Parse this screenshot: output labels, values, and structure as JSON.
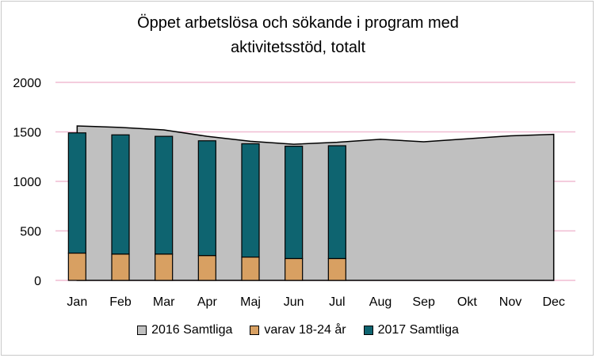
{
  "chart_data": {
    "type": "bar",
    "title_line1": "Öppet arbetslösa och sökande i program med",
    "title_line2": "aktivitetsstöd, totalt",
    "categories": [
      "Jan",
      "Feb",
      "Mar",
      "Apr",
      "Maj",
      "Jun",
      "Jul",
      "Aug",
      "Sep",
      "Okt",
      "Nov",
      "Dec"
    ],
    "y_ticks": [
      "0",
      "500",
      "1000",
      "1500",
      "2000"
    ],
    "ylim": [
      0,
      2000
    ],
    "grid": true,
    "legend_position": "bottom",
    "series": [
      {
        "name": "2016 Samtliga",
        "kind": "area",
        "color": "#c0c0c0",
        "values": [
          1560,
          1545,
          1520,
          1455,
          1405,
          1375,
          1395,
          1425,
          1400,
          1430,
          1460,
          1475
        ]
      },
      {
        "name": "varav 18-24 år",
        "kind": "bar",
        "color": "#d8a062",
        "values": [
          275,
          265,
          265,
          250,
          235,
          220,
          220,
          null,
          null,
          null,
          null,
          null
        ]
      },
      {
        "name": "2017 Samtliga",
        "kind": "bar",
        "color": "#0e6470",
        "values": [
          1490,
          1470,
          1455,
          1410,
          1380,
          1355,
          1360,
          null,
          null,
          null,
          null,
          null
        ]
      }
    ]
  }
}
